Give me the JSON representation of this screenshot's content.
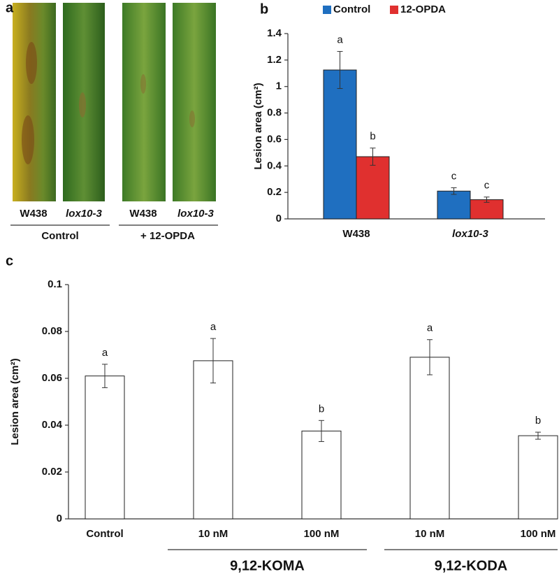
{
  "panel_a": {
    "panel": "a",
    "labels": [
      "W438",
      "lox10-3",
      "W438",
      "lox10-3"
    ],
    "groups": [
      "Control",
      "+ 12-OPDA"
    ]
  },
  "chart_data": [
    {
      "type": "bar",
      "panel": "b",
      "ylabel": "Lesion area (cm²)",
      "categories": [
        "W438",
        "lox10-3"
      ],
      "series": [
        {
          "name": "Control",
          "color": "#1f6fc0",
          "values": [
            1.125,
            0.21
          ],
          "errors": [
            0.14,
            0.025
          ],
          "significance": [
            "a",
            "c"
          ]
        },
        {
          "name": "12-OPDA",
          "color": "#e0302f",
          "values": [
            0.47,
            0.145
          ],
          "errors": [
            0.065,
            0.02
          ],
          "significance": [
            "b",
            "c"
          ]
        }
      ],
      "ylim": [
        0,
        1.4
      ],
      "yticks": [
        0,
        0.2,
        0.4,
        0.6,
        0.8,
        1,
        1.2,
        1.4
      ]
    },
    {
      "type": "bar",
      "panel": "c",
      "ylabel": "Lesion area (cm²)",
      "categories": [
        "Control",
        "10 nM",
        "100 nM",
        "10 nM",
        "100 nM"
      ],
      "values": [
        0.061,
        0.0675,
        0.0375,
        0.069,
        0.0355
      ],
      "errors": [
        0.005,
        0.0095,
        0.0045,
        0.0075,
        0.0015
      ],
      "significance": [
        "a",
        "a",
        "b",
        "a",
        "b"
      ],
      "color": "#ffffff",
      "groups": [
        {
          "label": "9,12-KOMA",
          "categories": [
            1,
            2
          ]
        },
        {
          "label": "9,12-KODA",
          "categories": [
            3,
            4
          ]
        }
      ],
      "ylim": [
        0,
        0.1
      ],
      "yticks": [
        0,
        0.02,
        0.04,
        0.06,
        0.08,
        0.1
      ]
    }
  ]
}
